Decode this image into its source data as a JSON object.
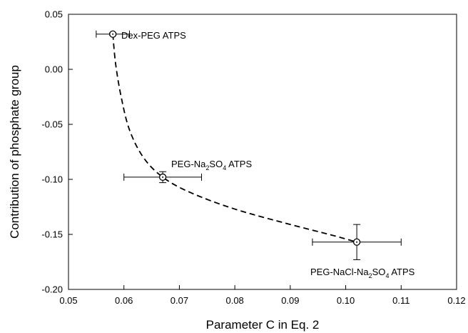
{
  "chart_data": {
    "type": "scatter",
    "title": "",
    "xlabel": "Parameter C in Eq. 2",
    "ylabel": "Contribution of phosphate group",
    "xlim": [
      0.05,
      0.12
    ],
    "ylim": [
      -0.2,
      0.05
    ],
    "x_ticks": [
      "0.05",
      "0.06",
      "0.07",
      "0.08",
      "0.09",
      "0.10",
      "0.11",
      "0.12"
    ],
    "y_ticks": [
      "0.05",
      "0.00",
      "-0.05",
      "-0.10",
      "-0.15",
      "-0.20"
    ],
    "grid": false,
    "points": [
      {
        "x": 0.058,
        "y": 0.032,
        "x_err": 0.003,
        "y_err": 0.001,
        "label": "Dex-PEG ATPS"
      },
      {
        "x": 0.067,
        "y": -0.098,
        "x_err": 0.007,
        "y_err": 0.005,
        "label_main": "PEG-Na",
        "label_sub": "2",
        "label_mid": "SO",
        "label_sub2": "4",
        "label_end": " ATPS"
      },
      {
        "x": 0.102,
        "y": -0.157,
        "x_err": 0.008,
        "y_err": 0.016,
        "label_main": "PEG-NaCl-Na",
        "label_sub": "2",
        "label_mid": "SO",
        "label_sub2": "4",
        "label_end": " ATPS"
      }
    ],
    "curve": [
      [
        0.058,
        0.032
      ],
      [
        0.0585,
        0.005
      ],
      [
        0.0595,
        -0.025
      ],
      [
        0.061,
        -0.055
      ],
      [
        0.0635,
        -0.08
      ],
      [
        0.067,
        -0.098
      ],
      [
        0.072,
        -0.112
      ],
      [
        0.08,
        -0.127
      ],
      [
        0.09,
        -0.141
      ],
      [
        0.097,
        -0.15
      ],
      [
        0.102,
        -0.157
      ]
    ],
    "curve_style": "dashed"
  }
}
